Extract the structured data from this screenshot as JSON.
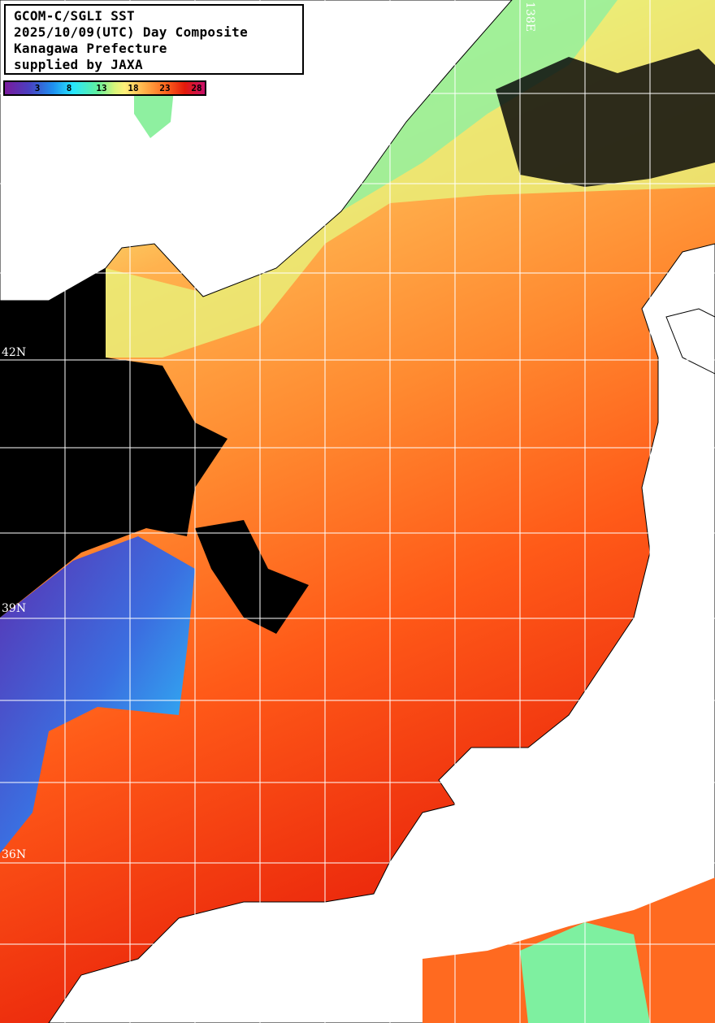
{
  "title": {
    "lines": [
      "GCOM-C/SGLI SST",
      "2025/10/09(UTC) Day Composite",
      "Kanagawa Prefecture",
      "supplied by JAXA"
    ]
  },
  "colorbar": {
    "ticks": [
      "3",
      "8",
      "13",
      "18",
      "23",
      "28"
    ],
    "colors": [
      "#7a1a9c",
      "#1f8ff0",
      "#27e6ff",
      "#5ff0a0",
      "#fff07a",
      "#ffb048",
      "#ff6a20",
      "#e41a0a",
      "#c8106a"
    ]
  },
  "grid_labels": {
    "lat": [
      "42N",
      "39N",
      "36N"
    ],
    "lon": [
      "138E"
    ]
  },
  "colors": {
    "land": "#ffffff",
    "no_data": "#000000",
    "grid": "#ffffff"
  }
}
